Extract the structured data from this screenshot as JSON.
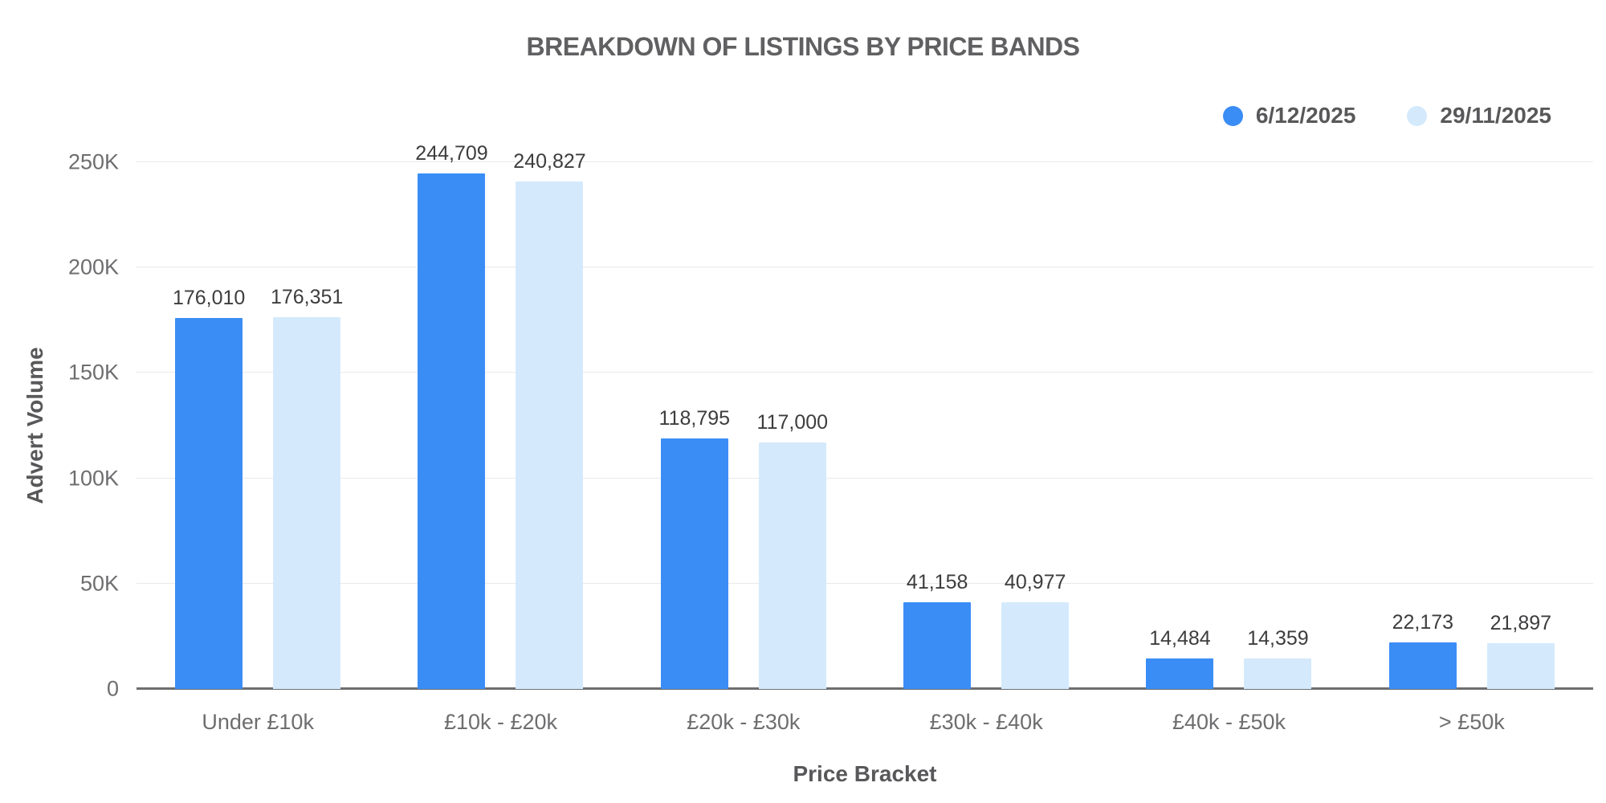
{
  "chart_data": {
    "type": "bar",
    "title": "BREAKDOWN OF LISTINGS BY PRICE BANDS",
    "xlabel": "Price Bracket",
    "ylabel": "Advert Volume",
    "categories": [
      "Under £10k",
      "£10k - £20k",
      "£20k - £30k",
      "£30k - £40k",
      "£40k - £50k",
      "> £50k"
    ],
    "series": [
      {
        "name": "6/12/2025",
        "color": "#3b8df6",
        "values": [
          176010,
          244709,
          118795,
          41158,
          14484,
          22173
        ]
      },
      {
        "name": "29/11/2025",
        "color": "#d4eafc",
        "values": [
          176351,
          240827,
          117000,
          40977,
          14359,
          21897
        ]
      }
    ],
    "ylim": [
      0,
      250000
    ],
    "yticks": [
      {
        "value": 0,
        "label": "0"
      },
      {
        "value": 50000,
        "label": "50K"
      },
      {
        "value": 100000,
        "label": "100K"
      },
      {
        "value": 150000,
        "label": "150K"
      },
      {
        "value": 200000,
        "label": "200K"
      },
      {
        "value": 250000,
        "label": "250K"
      }
    ],
    "grid": true,
    "legend_position": "top-right",
    "value_labels": true
  },
  "colors": {
    "bar_primary": "#3b8df6",
    "bar_secondary": "#d4eafc",
    "title_text": "#606062",
    "axis_title_text": "#58585a",
    "tick_text": "#6e6e70",
    "value_label_text": "#3d3d3f",
    "gridline": "#e9e9e9",
    "baseline": "#6e6e70"
  }
}
